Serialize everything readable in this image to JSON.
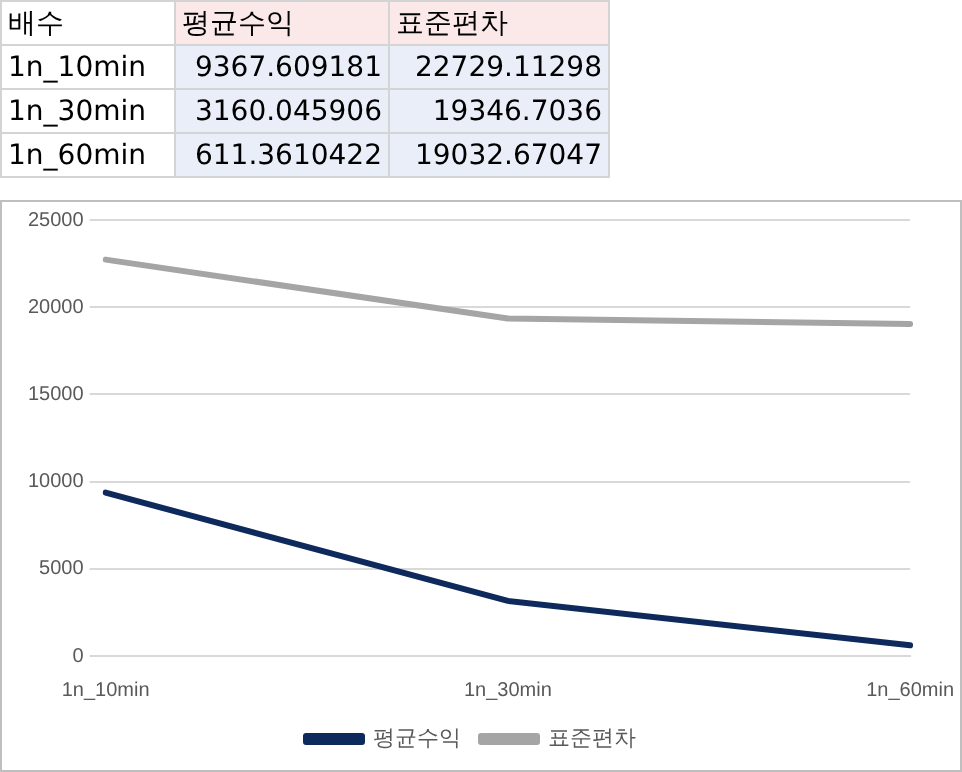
{
  "chart_data": {
    "type": "line",
    "categories": [
      "1n_10min",
      "1n_30min",
      "1n_60min"
    ],
    "series": [
      {
        "name": "평균수익",
        "color": "#0e2a5c",
        "values": [
          9367.609181,
          3160.045906,
          611.3610422
        ]
      },
      {
        "name": "표준편차",
        "color": "#a5a5a5",
        "values": [
          22729.11298,
          19346.7036,
          19032.67047
        ]
      }
    ],
    "ylim": [
      0,
      25000
    ],
    "yticks": [
      0,
      5000,
      10000,
      15000,
      20000,
      25000
    ],
    "grid": "y",
    "legend": "bottom",
    "marker": "none",
    "line_style": "solid",
    "annotations": [
      "배수",
      "9367.609181",
      "22729.11298",
      "3160.045906",
      "19346.7036",
      "611.3610422",
      "19032.67047"
    ]
  }
}
